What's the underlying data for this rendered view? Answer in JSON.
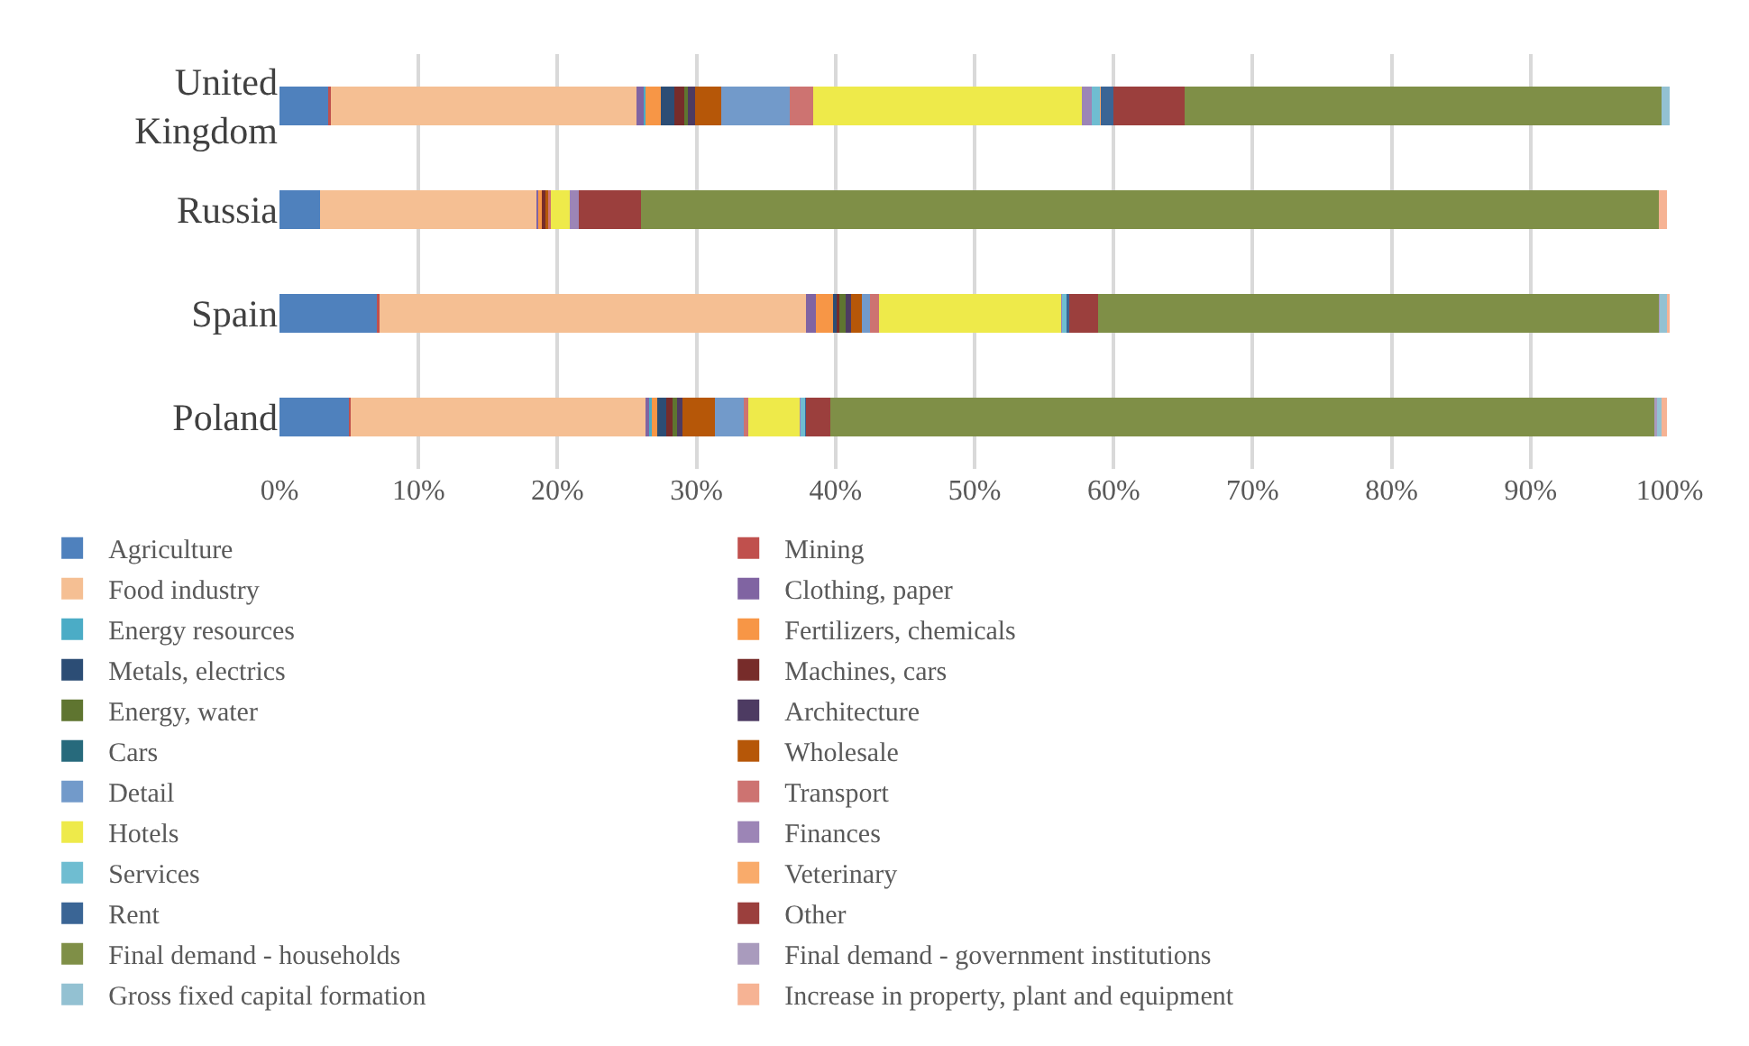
{
  "chart_data": {
    "type": "bar",
    "orientation": "horizontal",
    "stacked": true,
    "categories": [
      "United Kingdom",
      "Russia",
      "Spain",
      "Poland"
    ],
    "xlim": [
      0,
      100
    ],
    "xticks": [
      {
        "value": 0,
        "label": "0%"
      },
      {
        "value": 10,
        "label": "10%"
      },
      {
        "value": 20,
        "label": "20%"
      },
      {
        "value": 30,
        "label": "30%"
      },
      {
        "value": 40,
        "label": "40%"
      },
      {
        "value": 50,
        "label": "50%"
      },
      {
        "value": 60,
        "label": "60%"
      },
      {
        "value": 70,
        "label": "70%"
      },
      {
        "value": 80,
        "label": "80%"
      },
      {
        "value": 90,
        "label": "90%"
      },
      {
        "value": 100,
        "label": "100%"
      }
    ],
    "grid": "x",
    "legend": "bottom",
    "series": [
      {
        "name": "Agriculture",
        "color": "#4f81bd",
        "values": [
          3.5,
          2.9,
          7.0,
          5.0
        ]
      },
      {
        "name": "Mining",
        "color": "#c0504d",
        "values": [
          0.2,
          0,
          0.2,
          0.1
        ]
      },
      {
        "name": "Food industry",
        "color": "#f5bf93",
        "values": [
          22.0,
          15.6,
          30.7,
          21.2
        ]
      },
      {
        "name": "Clothing, paper",
        "color": "#8064a2",
        "values": [
          0.5,
          0.1,
          0.7,
          0.3
        ]
      },
      {
        "name": "Energy resources",
        "color": "#4bacc6",
        "values": [
          0.1,
          0,
          0,
          0.2
        ]
      },
      {
        "name": "Fertilizers, chemicals",
        "color": "#f79646",
        "values": [
          1.1,
          0.3,
          1.2,
          0.4
        ]
      },
      {
        "name": "Metals, electrics",
        "color": "#2c4d75",
        "values": [
          1.0,
          0,
          0.3,
          0.6
        ]
      },
      {
        "name": "Machines, cars",
        "color": "#772c2a",
        "values": [
          0.7,
          0.2,
          0.2,
          0.5
        ]
      },
      {
        "name": "Energy, water",
        "color": "#5f7530",
        "values": [
          0.3,
          0,
          0.4,
          0.3
        ]
      },
      {
        "name": "Architecture",
        "color": "#4d3b62",
        "values": [
          0.5,
          0,
          0.4,
          0.4
        ]
      },
      {
        "name": "Cars",
        "color": "#276a7c",
        "values": [
          0,
          0,
          0,
          0
        ]
      },
      {
        "name": "Wholesale",
        "color": "#b65708",
        "values": [
          1.9,
          0.2,
          0.8,
          2.3
        ]
      },
      {
        "name": "Detail",
        "color": "#729aca",
        "values": [
          4.9,
          0,
          0.6,
          2.1
        ]
      },
      {
        "name": "Transport",
        "color": "#cd7371",
        "values": [
          1.7,
          0.2,
          0.6,
          0.3
        ]
      },
      {
        "name": "Hotels",
        "color": "#eeea4a",
        "values": [
          19.3,
          1.4,
          13.1,
          3.7
        ]
      },
      {
        "name": "Finances",
        "color": "#9c85b6",
        "values": [
          0.7,
          0.6,
          0.1,
          0.1
        ]
      },
      {
        "name": "Services",
        "color": "#6fbdd1",
        "values": [
          0.6,
          0,
          0.3,
          0.3
        ]
      },
      {
        "name": "Veterinary",
        "color": "#f9ab6b",
        "values": [
          0.1,
          0,
          0,
          0
        ]
      },
      {
        "name": "Rent",
        "color": "#3a6595",
        "values": [
          0.9,
          0,
          0.2,
          0.1
        ]
      },
      {
        "name": "Other",
        "color": "#9b3f3d",
        "values": [
          5.1,
          4.5,
          2.1,
          1.7
        ]
      },
      {
        "name": "Final demand - households",
        "color": "#7f8f47",
        "values": [
          34.3,
          73.2,
          40.3,
          59.3
        ]
      },
      {
        "name": "Final demand - government institutions",
        "color": "#a99bbd",
        "values": [
          0,
          0,
          0.1,
          0.2
        ]
      },
      {
        "name": "Gross fixed capital formation",
        "color": "#93c1d2",
        "values": [
          0.6,
          0,
          0.5,
          0.3
        ]
      },
      {
        "name": "Increase in property, plant and equipment",
        "color": "#f6b394",
        "values": [
          0,
          0.6,
          0.2,
          0.4
        ]
      }
    ]
  }
}
